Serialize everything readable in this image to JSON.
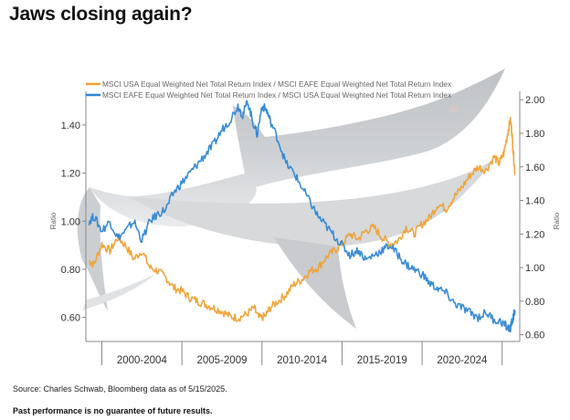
{
  "page": {
    "title": "Jaws closing again?",
    "source": "Source: Charles Schwab, Bloomberg data as of 5/15/2025.",
    "disclaimer": "Past performance is no guarantee of future results."
  },
  "chart_data": {
    "type": "line",
    "xlim": [
      1998.5,
      2025.6
    ],
    "left_axis": {
      "label": "Ratio",
      "ylim": [
        0.5,
        1.54
      ],
      "ticks": [
        "1.40",
        "1.20",
        "1.00",
        "0.80",
        "0.60"
      ]
    },
    "right_axis": {
      "label": "Ratio",
      "ylim": [
        0.56,
        2.05
      ],
      "ticks": [
        "2.00",
        "1.80",
        "1.60",
        "1.40",
        "1.20",
        "1.00",
        "0.80",
        "0.60"
      ]
    },
    "x_buckets": [
      "2000-2004",
      "2005-2009",
      "2010-2014",
      "2015-2019",
      "2020-2024"
    ],
    "colors": {
      "usa_over_eafe": "#F0A030",
      "eafe_over_usa": "#2E86D4",
      "shark": "#9FA4A9"
    },
    "decoration": "shark-silhouette",
    "series": [
      {
        "name": "MSCI USA Equal Weighted Net Total Return Index / MSCI EAFE Equal Weighted Net Total Return Index",
        "axis": "right",
        "points": [
          [
            1998.7,
            1.04
          ],
          [
            1999.0,
            1.02
          ],
          [
            1999.5,
            1.14
          ],
          [
            2000.0,
            1.1
          ],
          [
            2000.5,
            1.18
          ],
          [
            2001.0,
            1.13
          ],
          [
            2001.5,
            1.05
          ],
          [
            2002.0,
            1.1
          ],
          [
            2002.5,
            1.0
          ],
          [
            2003.0,
            0.98
          ],
          [
            2003.5,
            0.94
          ],
          [
            2004.0,
            0.88
          ],
          [
            2004.5,
            0.86
          ],
          [
            2005.0,
            0.82
          ],
          [
            2005.5,
            0.8
          ],
          [
            2006.0,
            0.78
          ],
          [
            2006.5,
            0.76
          ],
          [
            2007.0,
            0.74
          ],
          [
            2007.5,
            0.71
          ],
          [
            2008.0,
            0.7
          ],
          [
            2008.5,
            0.72
          ],
          [
            2009.0,
            0.76
          ],
          [
            2009.3,
            0.7
          ],
          [
            2009.7,
            0.71
          ],
          [
            2010.0,
            0.76
          ],
          [
            2010.5,
            0.8
          ],
          [
            2011.0,
            0.84
          ],
          [
            2011.5,
            0.9
          ],
          [
            2012.0,
            0.93
          ],
          [
            2012.5,
            0.98
          ],
          [
            2013.0,
            1.0
          ],
          [
            2013.5,
            1.06
          ],
          [
            2014.0,
            1.1
          ],
          [
            2014.5,
            1.14
          ],
          [
            2015.0,
            1.2
          ],
          [
            2015.5,
            1.17
          ],
          [
            2016.0,
            1.22
          ],
          [
            2016.5,
            1.24
          ],
          [
            2017.0,
            1.18
          ],
          [
            2017.5,
            1.14
          ],
          [
            2018.0,
            1.16
          ],
          [
            2018.5,
            1.24
          ],
          [
            2019.0,
            1.2
          ],
          [
            2019.5,
            1.26
          ],
          [
            2020.0,
            1.3
          ],
          [
            2020.5,
            1.38
          ],
          [
            2021.0,
            1.35
          ],
          [
            2021.5,
            1.42
          ],
          [
            2022.0,
            1.48
          ],
          [
            2022.5,
            1.55
          ],
          [
            2023.0,
            1.6
          ],
          [
            2023.5,
            1.58
          ],
          [
            2024.0,
            1.66
          ],
          [
            2024.3,
            1.62
          ],
          [
            2024.6,
            1.68
          ],
          [
            2024.85,
            1.8
          ],
          [
            2025.0,
            1.88
          ],
          [
            2025.1,
            1.82
          ],
          [
            2025.2,
            1.68
          ],
          [
            2025.3,
            1.56
          ]
        ]
      },
      {
        "name": "MSCI EAFE Equal Weighted Net Total Return Index / MSCI USA Equal Weighted Net Total Return Index",
        "axis": "left",
        "points": [
          [
            1998.7,
            1.0
          ],
          [
            1999.0,
            1.02
          ],
          [
            1999.5,
            0.96
          ],
          [
            2000.0,
            1.0
          ],
          [
            2000.5,
            0.93
          ],
          [
            2001.0,
            0.96
          ],
          [
            2001.5,
            1.0
          ],
          [
            2002.0,
            0.92
          ],
          [
            2002.5,
            1.0
          ],
          [
            2003.0,
            1.03
          ],
          [
            2003.5,
            1.05
          ],
          [
            2004.0,
            1.12
          ],
          [
            2004.5,
            1.16
          ],
          [
            2005.0,
            1.2
          ],
          [
            2005.5,
            1.24
          ],
          [
            2006.0,
            1.28
          ],
          [
            2006.5,
            1.32
          ],
          [
            2007.0,
            1.38
          ],
          [
            2007.5,
            1.42
          ],
          [
            2008.0,
            1.48
          ],
          [
            2008.3,
            1.44
          ],
          [
            2008.6,
            1.5
          ],
          [
            2008.9,
            1.42
          ],
          [
            2009.2,
            1.36
          ],
          [
            2009.5,
            1.48
          ],
          [
            2009.8,
            1.46
          ],
          [
            2010.0,
            1.42
          ],
          [
            2010.5,
            1.34
          ],
          [
            2011.0,
            1.24
          ],
          [
            2011.5,
            1.2
          ],
          [
            2012.0,
            1.14
          ],
          [
            2012.5,
            1.08
          ],
          [
            2013.0,
            1.02
          ],
          [
            2013.5,
            0.98
          ],
          [
            2014.0,
            0.94
          ],
          [
            2014.5,
            0.9
          ],
          [
            2015.0,
            0.86
          ],
          [
            2015.5,
            0.88
          ],
          [
            2016.0,
            0.84
          ],
          [
            2016.5,
            0.86
          ],
          [
            2017.0,
            0.88
          ],
          [
            2017.5,
            0.9
          ],
          [
            2018.0,
            0.86
          ],
          [
            2018.5,
            0.82
          ],
          [
            2019.0,
            0.8
          ],
          [
            2019.5,
            0.78
          ],
          [
            2020.0,
            0.74
          ],
          [
            2020.5,
            0.72
          ],
          [
            2021.0,
            0.7
          ],
          [
            2021.5,
            0.66
          ],
          [
            2022.0,
            0.64
          ],
          [
            2022.5,
            0.62
          ],
          [
            2023.0,
            0.6
          ],
          [
            2023.5,
            0.62
          ],
          [
            2024.0,
            0.59
          ],
          [
            2024.5,
            0.58
          ],
          [
            2024.8,
            0.56
          ],
          [
            2025.0,
            0.55
          ],
          [
            2025.1,
            0.58
          ],
          [
            2025.2,
            0.6
          ],
          [
            2025.3,
            0.63
          ]
        ]
      }
    ]
  }
}
